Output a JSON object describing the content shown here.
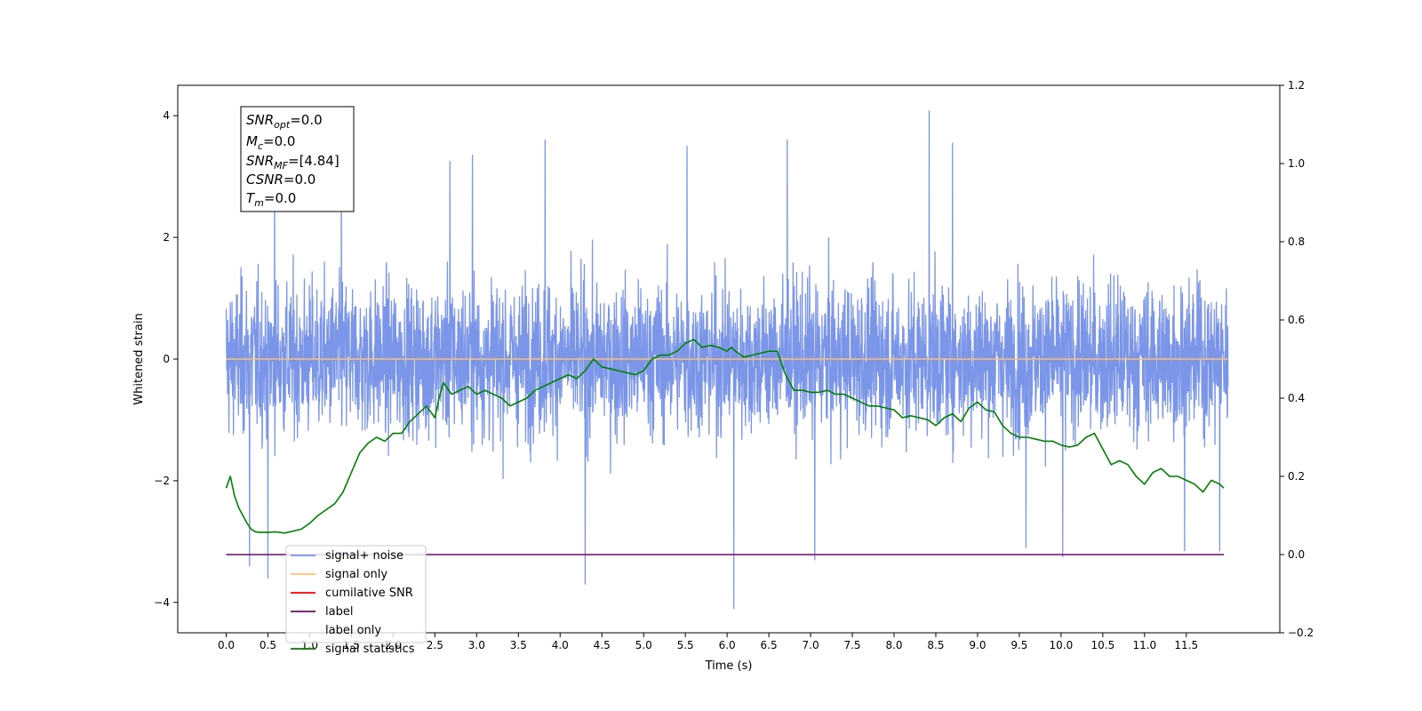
{
  "chart_data": {
    "type": "line",
    "xlabel": "Time (s)",
    "ylabel": "Whitened strain",
    "xlim": [
      -0.58,
      12.62
    ],
    "ylim_left": [
      -4.5,
      4.5
    ],
    "ylim_right": [
      -0.2,
      1.2
    ],
    "x_ticks": [
      0.0,
      0.5,
      1.0,
      1.5,
      2.0,
      2.5,
      3.0,
      3.5,
      4.0,
      4.5,
      5.0,
      5.5,
      6.0,
      6.5,
      7.0,
      7.5,
      8.0,
      8.5,
      9.0,
      9.5,
      10.0,
      10.5,
      11.0,
      11.5
    ],
    "x_tick_labels": [
      "0.0",
      "0.5",
      "1.0",
      "1.5",
      "2.0",
      "2.5",
      "3.0",
      "3.5",
      "4.0",
      "4.5",
      "5.0",
      "5.5",
      "6.0",
      "6.5",
      "7.0",
      "7.5",
      "8.0",
      "8.5",
      "9.0",
      "9.5",
      "10.0",
      "10.5",
      "11.0",
      "11.5"
    ],
    "y_ticks_left": [
      -4,
      -2,
      0,
      2,
      4
    ],
    "y_tick_labels_left": [
      "−4",
      "−2",
      "0",
      "2",
      "4"
    ],
    "y_ticks_right": [
      -0.2,
      0.0,
      0.2,
      0.4,
      0.6,
      0.8,
      1.0,
      1.2
    ],
    "y_tick_labels_right": [
      "−0.2",
      "0.0",
      "0.2",
      "0.4",
      "0.6",
      "0.8",
      "1.0",
      "1.2"
    ],
    "grid": false,
    "legend_position": "lower-left",
    "annotation_box": {
      "position": "upper-left",
      "lines": [
        {
          "sym": "SNR",
          "sub": "opt",
          "value": "=0.0"
        },
        {
          "sym": "M",
          "sub": "c",
          "value": "=0.0"
        },
        {
          "sym": "SNR",
          "sub": "MF",
          "value": "=[4.84]"
        },
        {
          "sym": "CSNR",
          "sub": "",
          "value": "=0.0"
        },
        {
          "sym": "T",
          "sub": "m",
          "value": "=0.0"
        }
      ]
    },
    "series": [
      {
        "name": "signal+ noise",
        "axis": "left",
        "color": "#7b96e8",
        "style": "noise",
        "x_range": [
          0.0,
          12.0
        ],
        "typical_band": [
          -1.3,
          1.3
        ],
        "approx_extremes": [
          -4.1,
          4.08
        ],
        "spikes": [
          {
            "x": 0.5,
            "y": -3.6
          },
          {
            "x": 0.58,
            "y": 3.7
          },
          {
            "x": 1.38,
            "y": 3.2
          },
          {
            "x": 2.68,
            "y": 3.25
          },
          {
            "x": 2.95,
            "y": 3.35
          },
          {
            "x": 3.82,
            "y": 3.6
          },
          {
            "x": 4.3,
            "y": -3.7
          },
          {
            "x": 5.52,
            "y": 3.5
          },
          {
            "x": 6.08,
            "y": -4.1
          },
          {
            "x": 6.72,
            "y": 3.6
          },
          {
            "x": 8.42,
            "y": 4.08
          },
          {
            "x": 8.7,
            "y": 3.55
          },
          {
            "x": 10.02,
            "y": -3.25
          },
          {
            "x": 11.48,
            "y": -3.15
          },
          {
            "x": 11.9,
            "y": -3.15
          },
          {
            "x": 7.05,
            "y": -3.3
          },
          {
            "x": 9.58,
            "y": -3.1
          },
          {
            "x": 0.28,
            "y": -3.4
          }
        ]
      },
      {
        "name": "signal only",
        "axis": "left",
        "color": "#ffbf66",
        "x": [
          0.0,
          12.0
        ],
        "y": [
          0.0,
          0.0
        ]
      },
      {
        "name": "cumilative SNR",
        "axis": "left",
        "color": "#ff0000",
        "x": [],
        "y": []
      },
      {
        "name": "label",
        "axis": "right",
        "color": "#800080",
        "x": [
          0.0,
          11.95
        ],
        "y": [
          0.0,
          0.0
        ]
      },
      {
        "name": "label only",
        "axis": "right",
        "color": "#ffffff",
        "x": [],
        "y": []
      },
      {
        "name": "signal statistics",
        "axis": "right",
        "color": "#008000",
        "x": [
          0.0,
          0.05,
          0.1,
          0.15,
          0.2,
          0.25,
          0.3,
          0.35,
          0.4,
          0.5,
          0.6,
          0.7,
          0.8,
          0.9,
          1.0,
          1.1,
          1.2,
          1.3,
          1.4,
          1.5,
          1.6,
          1.7,
          1.8,
          1.9,
          2.0,
          2.1,
          2.2,
          2.3,
          2.4,
          2.5,
          2.55,
          2.6,
          2.7,
          2.8,
          2.9,
          3.0,
          3.1,
          3.2,
          3.3,
          3.4,
          3.5,
          3.6,
          3.7,
          3.8,
          3.9,
          4.0,
          4.1,
          4.2,
          4.3,
          4.4,
          4.5,
          4.6,
          4.7,
          4.8,
          4.9,
          5.0,
          5.1,
          5.2,
          5.3,
          5.4,
          5.5,
          5.6,
          5.7,
          5.8,
          5.9,
          6.0,
          6.05,
          6.1,
          6.2,
          6.3,
          6.4,
          6.5,
          6.6,
          6.7,
          6.8,
          6.9,
          7.0,
          7.1,
          7.2,
          7.3,
          7.4,
          7.5,
          7.6,
          7.7,
          7.8,
          7.9,
          8.0,
          8.1,
          8.2,
          8.3,
          8.4,
          8.5,
          8.6,
          8.7,
          8.8,
          8.9,
          9.0,
          9.1,
          9.2,
          9.3,
          9.4,
          9.5,
          9.6,
          9.7,
          9.8,
          9.9,
          10.0,
          10.1,
          10.2,
          10.3,
          10.4,
          10.5,
          10.6,
          10.7,
          10.8,
          10.9,
          11.0,
          11.1,
          11.2,
          11.3,
          11.4,
          11.5,
          11.6,
          11.7,
          11.8,
          11.9,
          11.95
        ],
        "y": [
          0.17,
          0.2,
          0.15,
          0.12,
          0.1,
          0.08,
          0.065,
          0.058,
          0.057,
          0.057,
          0.058,
          0.055,
          0.06,
          0.065,
          0.08,
          0.1,
          0.115,
          0.13,
          0.16,
          0.21,
          0.26,
          0.285,
          0.3,
          0.29,
          0.31,
          0.31,
          0.34,
          0.36,
          0.38,
          0.35,
          0.4,
          0.44,
          0.41,
          0.42,
          0.43,
          0.41,
          0.42,
          0.41,
          0.4,
          0.38,
          0.39,
          0.4,
          0.42,
          0.43,
          0.44,
          0.45,
          0.46,
          0.45,
          0.47,
          0.5,
          0.48,
          0.475,
          0.47,
          0.465,
          0.46,
          0.47,
          0.5,
          0.51,
          0.51,
          0.52,
          0.54,
          0.55,
          0.53,
          0.535,
          0.53,
          0.52,
          0.53,
          0.52,
          0.505,
          0.51,
          0.515,
          0.52,
          0.52,
          0.46,
          0.42,
          0.42,
          0.415,
          0.415,
          0.42,
          0.41,
          0.41,
          0.4,
          0.39,
          0.38,
          0.38,
          0.375,
          0.37,
          0.35,
          0.355,
          0.35,
          0.345,
          0.33,
          0.35,
          0.36,
          0.34,
          0.375,
          0.39,
          0.37,
          0.365,
          0.33,
          0.31,
          0.3,
          0.3,
          0.295,
          0.29,
          0.29,
          0.28,
          0.275,
          0.28,
          0.3,
          0.31,
          0.27,
          0.23,
          0.24,
          0.23,
          0.2,
          0.18,
          0.21,
          0.22,
          0.2,
          0.2,
          0.19,
          0.18,
          0.16,
          0.19,
          0.18,
          0.17
        ]
      }
    ]
  }
}
